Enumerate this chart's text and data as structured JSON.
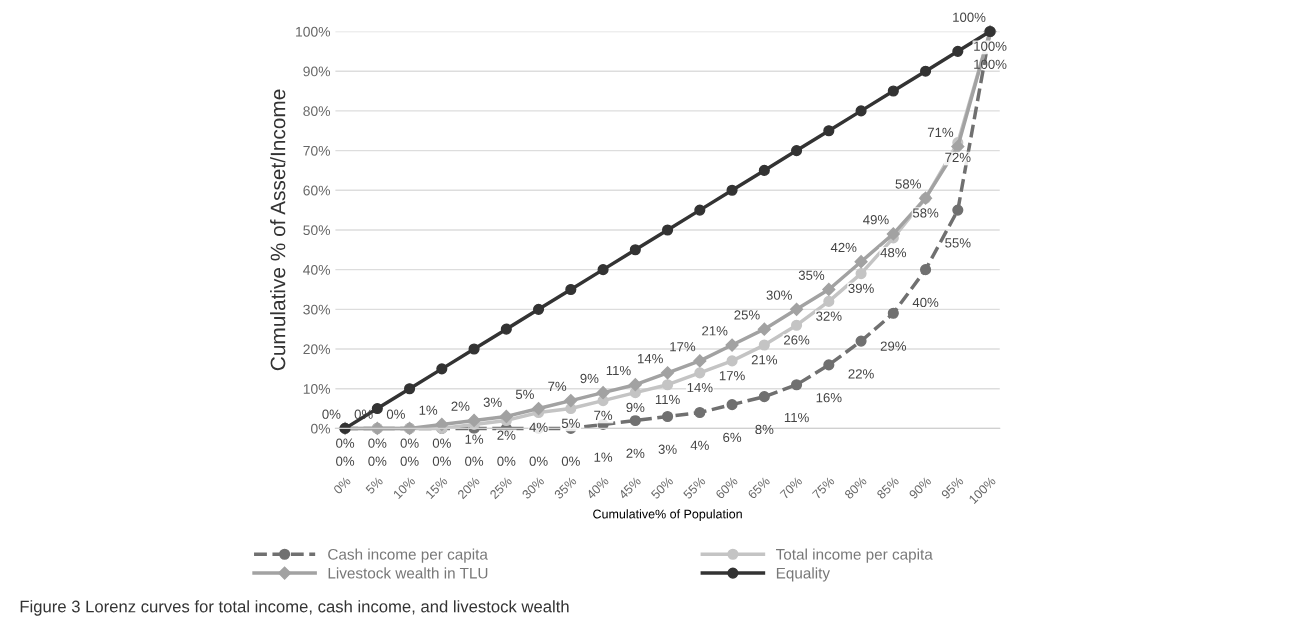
{
  "chart_data": {
    "type": "line",
    "categories": [
      "0%",
      "5%",
      "10%",
      "15%",
      "20%",
      "25%",
      "30%",
      "35%",
      "40%",
      "45%",
      "50%",
      "55%",
      "60%",
      "65%",
      "70%",
      "75%",
      "80%",
      "85%",
      "90%",
      "95%",
      "100%"
    ],
    "xlabel": "Cumulative% of Population",
    "ylabel": "Cumulative % of Asset/Income",
    "ylim": [
      0,
      100
    ],
    "yticks": [
      {
        "value": 0,
        "label": "0%"
      },
      {
        "value": 10,
        "label": "10%"
      },
      {
        "value": 20,
        "label": "20%"
      },
      {
        "value": 30,
        "label": "30%"
      },
      {
        "value": 40,
        "label": "40%"
      },
      {
        "value": 50,
        "label": "50%"
      },
      {
        "value": 60,
        "label": "60%"
      },
      {
        "value": 70,
        "label": "70%"
      },
      {
        "value": 80,
        "label": "80%"
      },
      {
        "value": 90,
        "label": "90%"
      },
      {
        "value": 100,
        "label": "100%"
      }
    ],
    "grid": "y",
    "legend": "bottom",
    "series": [
      {
        "name": "Cash income per capita",
        "color": "#707070",
        "marker": "circle",
        "line_style": "dashed",
        "values": [
          0,
          0,
          0,
          0,
          0,
          0,
          0,
          0,
          1,
          2,
          3,
          4,
          6,
          8,
          11,
          16,
          22,
          29,
          40,
          55,
          100
        ],
        "value_labels": [
          "0%",
          "0%",
          "0%",
          "0%",
          "0%",
          "0%",
          "0%",
          "0%",
          "1%",
          "2%",
          "3%",
          "4%",
          "6%",
          "8%",
          "11%",
          "16%",
          "22%",
          "29%",
          "40%",
          "55%",
          "100%"
        ]
      },
      {
        "name": "Total income per capita",
        "color": "#c4c4c4",
        "marker": "circle",
        "line_style": "solid",
        "values": [
          0,
          0,
          0,
          0,
          1,
          2,
          4,
          5,
          7,
          9,
          11,
          14,
          17,
          21,
          26,
          32,
          39,
          48,
          58,
          72,
          100
        ],
        "value_labels": [
          "0%",
          "0%",
          "0%",
          "0%",
          "1%",
          "2%",
          "4%",
          "5%",
          "7%",
          "9%",
          "11%",
          "14%",
          "17%",
          "21%",
          "26%",
          "32%",
          "39%",
          "48%",
          "58%",
          "72%",
          "100%"
        ]
      },
      {
        "name": "Livestock wealth in TLU",
        "color": "#a2a2a2",
        "marker": "diamond",
        "line_style": "solid",
        "values": [
          0,
          0,
          0,
          1,
          2,
          3,
          5,
          7,
          9,
          11,
          14,
          17,
          21,
          25,
          30,
          35,
          42,
          49,
          58,
          71,
          100
        ],
        "value_labels": [
          "0%",
          "0%",
          "0%",
          "1%",
          "2%",
          "3%",
          "5%",
          "7%",
          "9%",
          "11%",
          "14%",
          "17%",
          "21%",
          "25%",
          "30%",
          "35%",
          "42%",
          "49%",
          "58%",
          "71%",
          "100%"
        ]
      },
      {
        "name": "Equality",
        "color": "#333333",
        "marker": "circle",
        "line_style": "solid",
        "values": [
          0,
          5,
          10,
          15,
          20,
          25,
          30,
          35,
          40,
          45,
          50,
          55,
          60,
          65,
          70,
          75,
          80,
          85,
          90,
          95,
          100
        ]
      }
    ],
    "annotations": [
      "Figure 3 Lorenz curves for total income, cash income, and livestock wealth"
    ]
  }
}
